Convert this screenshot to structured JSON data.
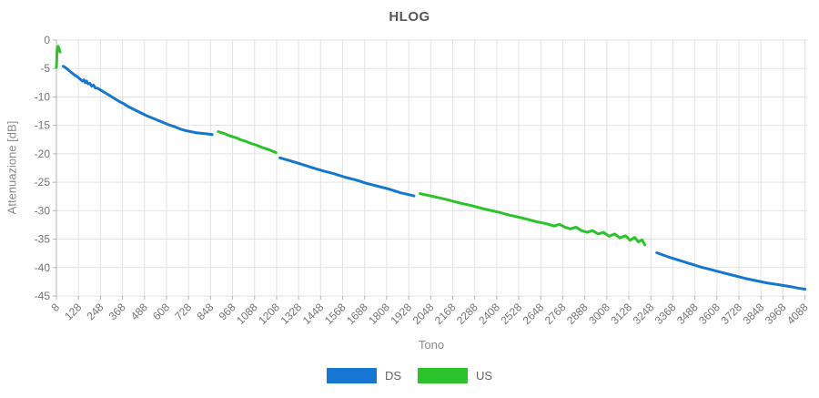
{
  "chart_data": {
    "type": "line",
    "title": "HLOG",
    "xlabel": "Tono",
    "ylabel": "Attenuazione [dB]",
    "xlim": [
      8,
      4100
    ],
    "ylim": [
      -45,
      0
    ],
    "x_ticks": [
      8,
      128,
      248,
      368,
      488,
      608,
      728,
      848,
      968,
      1088,
      1208,
      1328,
      1448,
      1568,
      1688,
      1808,
      1928,
      2048,
      2168,
      2288,
      2408,
      2528,
      2648,
      2768,
      2888,
      3008,
      3128,
      3248,
      3368,
      3488,
      3608,
      3728,
      3848,
      3968,
      4088
    ],
    "y_ticks": [
      0,
      -5,
      -10,
      -15,
      -20,
      -25,
      -30,
      -35,
      -40,
      -45
    ],
    "x_tick_rotation": -45,
    "grid": true,
    "legend_position": "bottom",
    "colors": {
      "grid": "#e3e3e3",
      "axis": "#b3b3b3",
      "tick_text": "#757575",
      "title_text": "#575757",
      "legend_text": "#666666",
      "ds": "#1577d2",
      "us": "#2bc32b"
    },
    "series": [
      {
        "name": "DS",
        "color": "#1577d2",
        "segments": [
          [
            [
              45,
              -4.6
            ],
            [
              60,
              -4.9
            ],
            [
              75,
              -5.3
            ],
            [
              90,
              -5.7
            ],
            [
              105,
              -6.1
            ],
            [
              120,
              -6.4
            ],
            [
              135,
              -6.8
            ],
            [
              150,
              -7.2
            ],
            [
              158,
              -7.0
            ],
            [
              165,
              -7.5
            ],
            [
              172,
              -7.2
            ],
            [
              180,
              -7.7
            ],
            [
              190,
              -7.6
            ],
            [
              200,
              -8.1
            ],
            [
              210,
              -7.9
            ],
            [
              220,
              -8.4
            ],
            [
              235,
              -8.5
            ],
            [
              250,
              -8.8
            ],
            [
              270,
              -9.2
            ],
            [
              290,
              -9.6
            ],
            [
              310,
              -10.0
            ],
            [
              330,
              -10.4
            ],
            [
              350,
              -10.8
            ],
            [
              375,
              -11.2
            ],
            [
              400,
              -11.7
            ],
            [
              425,
              -12.1
            ],
            [
              450,
              -12.5
            ],
            [
              475,
              -12.9
            ],
            [
              500,
              -13.3
            ],
            [
              530,
              -13.7
            ],
            [
              560,
              -14.1
            ],
            [
              590,
              -14.5
            ],
            [
              620,
              -14.9
            ],
            [
              650,
              -15.2
            ],
            [
              680,
              -15.6
            ],
            [
              710,
              -15.9
            ],
            [
              740,
              -16.1
            ],
            [
              770,
              -16.3
            ],
            [
              800,
              -16.4
            ],
            [
              830,
              -16.5
            ],
            [
              857,
              -16.6
            ]
          ],
          [
            [
              1226,
              -20.7
            ],
            [
              1280,
              -21.2
            ],
            [
              1340,
              -21.8
            ],
            [
              1400,
              -22.4
            ],
            [
              1460,
              -23.0
            ],
            [
              1520,
              -23.5
            ],
            [
              1580,
              -24.1
            ],
            [
              1640,
              -24.6
            ],
            [
              1700,
              -25.2
            ],
            [
              1760,
              -25.7
            ],
            [
              1820,
              -26.2
            ],
            [
              1880,
              -26.8
            ],
            [
              1957,
              -27.4
            ]
          ],
          [
            [
              3280,
              -37.4
            ],
            [
              3340,
              -38.1
            ],
            [
              3400,
              -38.7
            ],
            [
              3460,
              -39.3
            ],
            [
              3520,
              -39.9
            ],
            [
              3580,
              -40.4
            ],
            [
              3640,
              -40.9
            ],
            [
              3700,
              -41.4
            ],
            [
              3760,
              -41.9
            ],
            [
              3820,
              -42.3
            ],
            [
              3880,
              -42.7
            ],
            [
              3940,
              -43.0
            ],
            [
              4000,
              -43.3
            ],
            [
              4050,
              -43.6
            ],
            [
              4088,
              -43.8
            ]
          ]
        ]
      },
      {
        "name": "US",
        "color": "#2bc32b",
        "segments": [
          [
            [
              8,
              -4.8
            ],
            [
              9,
              -4.1
            ],
            [
              10,
              -3.2
            ],
            [
              11,
              -2.3
            ],
            [
              12,
              -1.6
            ],
            [
              14,
              -1.2
            ],
            [
              17,
              -1.1
            ],
            [
              20,
              -1.3
            ],
            [
              24,
              -1.7
            ],
            [
              28,
              -2.1
            ]
          ],
          [
            [
              890,
              -16.1
            ],
            [
              920,
              -16.4
            ],
            [
              950,
              -16.8
            ],
            [
              980,
              -17.1
            ],
            [
              1010,
              -17.5
            ],
            [
              1040,
              -17.8
            ],
            [
              1070,
              -18.2
            ],
            [
              1100,
              -18.5
            ],
            [
              1130,
              -18.9
            ],
            [
              1160,
              -19.2
            ],
            [
              1205,
              -19.8
            ]
          ],
          [
            [
              1990,
              -27.0
            ],
            [
              2060,
              -27.5
            ],
            [
              2130,
              -28.0
            ],
            [
              2200,
              -28.6
            ],
            [
              2270,
              -29.1
            ],
            [
              2340,
              -29.7
            ],
            [
              2410,
              -30.2
            ],
            [
              2480,
              -30.8
            ],
            [
              2550,
              -31.3
            ],
            [
              2620,
              -31.9
            ],
            [
              2680,
              -32.3
            ],
            [
              2720,
              -32.7
            ],
            [
              2750,
              -32.4
            ],
            [
              2780,
              -32.9
            ],
            [
              2810,
              -33.2
            ],
            [
              2840,
              -32.9
            ],
            [
              2870,
              -33.5
            ],
            [
              2900,
              -33.8
            ],
            [
              2930,
              -33.5
            ],
            [
              2960,
              -34.1
            ],
            [
              2990,
              -33.8
            ],
            [
              3020,
              -34.5
            ],
            [
              3050,
              -34.1
            ],
            [
              3080,
              -34.8
            ],
            [
              3110,
              -34.4
            ],
            [
              3135,
              -35.2
            ],
            [
              3160,
              -34.7
            ],
            [
              3180,
              -35.5
            ],
            [
              3200,
              -35.1
            ],
            [
              3215,
              -36.0
            ]
          ]
        ]
      }
    ]
  }
}
